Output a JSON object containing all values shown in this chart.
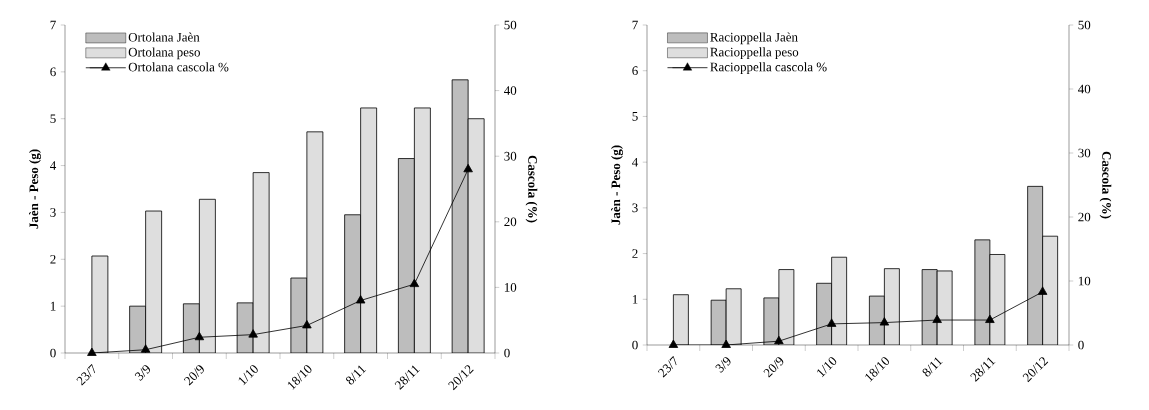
{
  "chart_data": [
    {
      "type": "bar",
      "categories": [
        "23/7",
        "3/9",
        "20/9",
        "1/10",
        "18/10",
        "8/11",
        "28/11",
        "20/12"
      ],
      "series": [
        {
          "name": "Ortolana Jaèn",
          "color": "#bdbdbd",
          "values": [
            null,
            1.0,
            1.05,
            1.07,
            1.6,
            2.95,
            4.15,
            5.83
          ]
        },
        {
          "name": "Ortolana peso",
          "color": "#dedede",
          "values": [
            2.07,
            3.03,
            3.28,
            3.85,
            4.72,
            5.23,
            5.23,
            5.0
          ]
        },
        {
          "name": "Ortolana cascola %",
          "color": "#000000",
          "type": "line",
          "axis": "y2",
          "values": [
            0,
            0.5,
            2.4,
            2.8,
            4.2,
            8,
            10.5,
            28
          ]
        }
      ],
      "ylabel": "Jaèn - Peso (g)",
      "y2label": "Cascola (%)",
      "ylim": [
        0,
        7
      ],
      "yticks": [
        0,
        1,
        2,
        3,
        4,
        5,
        6,
        7
      ],
      "y2lim": [
        0,
        50
      ],
      "y2ticks": [
        0,
        10,
        20,
        30,
        40,
        50
      ],
      "marker": "triangle",
      "legend": "top left"
    },
    {
      "type": "bar",
      "categories": [
        "23/7",
        "3/9",
        "20/9",
        "1/10",
        "18/10",
        "8/11",
        "28/11",
        "20/12"
      ],
      "series": [
        {
          "name": "Racioppella Jaèn",
          "color": "#bdbdbd",
          "values": [
            null,
            0.98,
            1.03,
            1.35,
            1.07,
            1.65,
            2.3,
            3.47
          ]
        },
        {
          "name": "Racioppella peso",
          "color": "#dedede",
          "values": [
            1.1,
            1.23,
            1.65,
            1.92,
            1.67,
            1.62,
            1.98,
            2.38
          ]
        },
        {
          "name": "Racioppella cascola %",
          "color": "#000000",
          "type": "line",
          "axis": "y2",
          "values": [
            0,
            0,
            0.6,
            3.3,
            3.5,
            3.9,
            3.9,
            8.3
          ]
        }
      ],
      "ylabel": "Jaèn - Peso (g)",
      "y2label": "Cascola (%)",
      "ylim": [
        0,
        7
      ],
      "yticks": [
        0,
        1,
        2,
        3,
        4,
        5,
        6,
        7
      ],
      "y2lim": [
        0,
        50
      ],
      "y2ticks": [
        0,
        10,
        20,
        30,
        40,
        50
      ],
      "marker": "triangle",
      "legend": "top left"
    }
  ]
}
